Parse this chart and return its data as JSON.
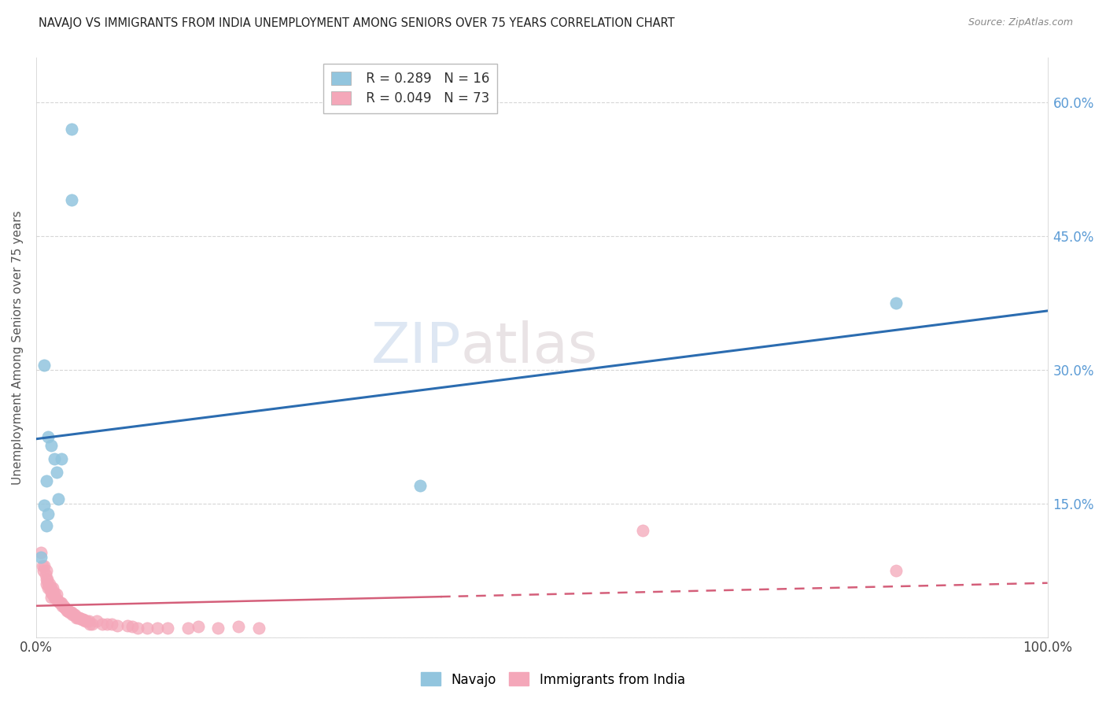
{
  "title": "NAVAJO VS IMMIGRANTS FROM INDIA UNEMPLOYMENT AMONG SENIORS OVER 75 YEARS CORRELATION CHART",
  "source": "Source: ZipAtlas.com",
  "ylabel": "Unemployment Among Seniors over 75 years",
  "background_color": "#ffffff",
  "navajo_color": "#92c5de",
  "india_color": "#f4a7b9",
  "navajo_line_color": "#2b6cb0",
  "india_line_color": "#d45f7a",
  "navajo_R": 0.289,
  "navajo_N": 16,
  "india_R": 0.049,
  "india_N": 73,
  "xlim": [
    0,
    1.0
  ],
  "ylim": [
    0,
    0.65
  ],
  "navajo_x": [
    0.035,
    0.035,
    0.008,
    0.012,
    0.015,
    0.018,
    0.02,
    0.025,
    0.01,
    0.022,
    0.008,
    0.012,
    0.01,
    0.38,
    0.85,
    0.005
  ],
  "navajo_y": [
    0.57,
    0.49,
    0.305,
    0.225,
    0.215,
    0.2,
    0.185,
    0.2,
    0.175,
    0.155,
    0.148,
    0.138,
    0.125,
    0.17,
    0.375,
    0.09
  ],
  "india_x": [
    0.005,
    0.006,
    0.007,
    0.008,
    0.009,
    0.01,
    0.01,
    0.01,
    0.011,
    0.012,
    0.012,
    0.013,
    0.013,
    0.014,
    0.015,
    0.015,
    0.015,
    0.016,
    0.016,
    0.017,
    0.018,
    0.018,
    0.019,
    0.02,
    0.02,
    0.021,
    0.022,
    0.023,
    0.024,
    0.025,
    0.026,
    0.027,
    0.028,
    0.029,
    0.03,
    0.031,
    0.032,
    0.033,
    0.034,
    0.035,
    0.036,
    0.037,
    0.038,
    0.04,
    0.041,
    0.042,
    0.043,
    0.045,
    0.046,
    0.047,
    0.048,
    0.05,
    0.052,
    0.053,
    0.055,
    0.06,
    0.065,
    0.07,
    0.075,
    0.08,
    0.09,
    0.095,
    0.1,
    0.11,
    0.12,
    0.13,
    0.15,
    0.16,
    0.18,
    0.2,
    0.22,
    0.6,
    0.85
  ],
  "india_y": [
    0.095,
    0.08,
    0.075,
    0.08,
    0.07,
    0.075,
    0.065,
    0.06,
    0.065,
    0.06,
    0.055,
    0.06,
    0.055,
    0.055,
    0.055,
    0.05,
    0.045,
    0.055,
    0.048,
    0.048,
    0.05,
    0.045,
    0.045,
    0.048,
    0.042,
    0.042,
    0.04,
    0.038,
    0.038,
    0.038,
    0.035,
    0.035,
    0.033,
    0.032,
    0.03,
    0.03,
    0.03,
    0.028,
    0.028,
    0.028,
    0.025,
    0.025,
    0.025,
    0.022,
    0.022,
    0.022,
    0.022,
    0.02,
    0.02,
    0.02,
    0.018,
    0.018,
    0.018,
    0.015,
    0.015,
    0.018,
    0.015,
    0.015,
    0.015,
    0.013,
    0.013,
    0.012,
    0.01,
    0.01,
    0.01,
    0.01,
    0.01,
    0.012,
    0.01,
    0.012,
    0.01,
    0.12,
    0.075
  ]
}
